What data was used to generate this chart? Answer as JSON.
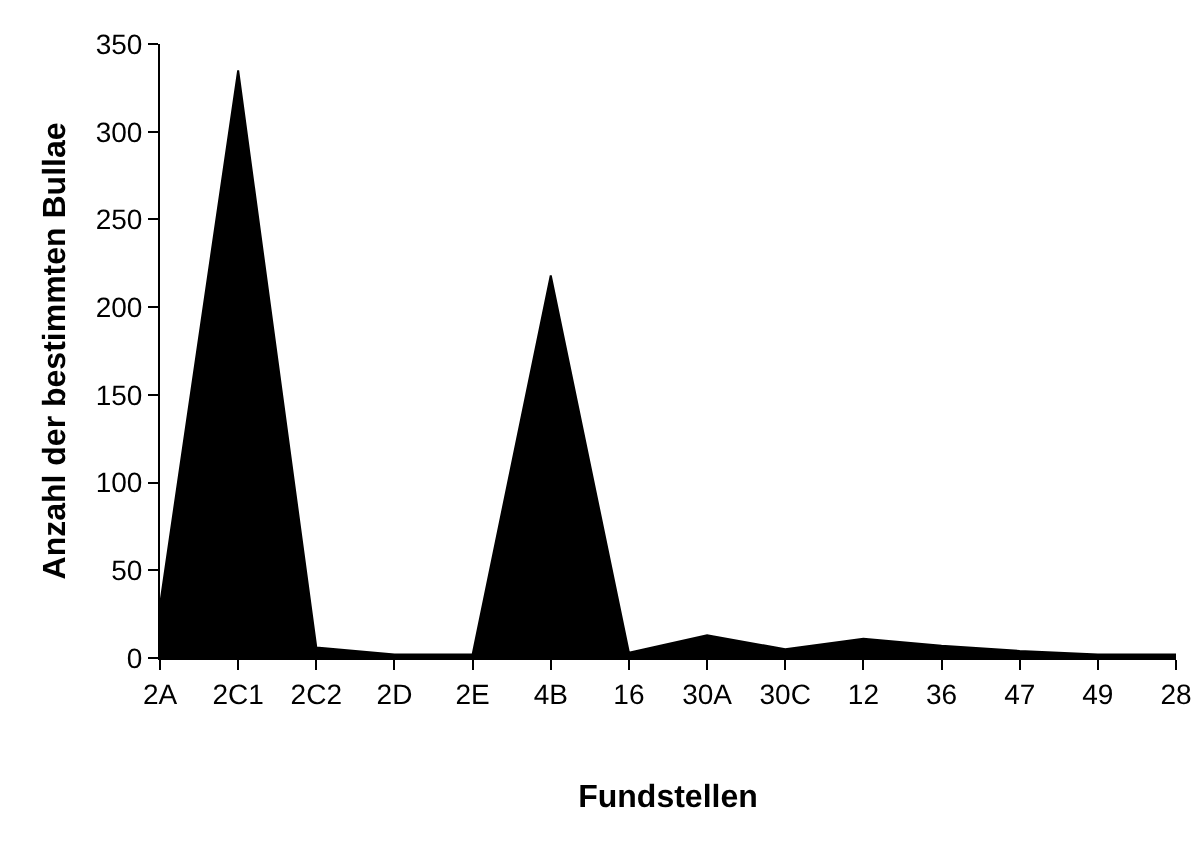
{
  "chart_data": {
    "type": "area",
    "xlabel": "Fundstellen",
    "ylabel": "Anzahl der bestimmten Bullae",
    "categories": [
      "2A",
      "2C1",
      "2C2",
      "2D",
      "2E",
      "4B",
      "16",
      "30A",
      "30C",
      "12",
      "36",
      "47",
      "49",
      "28"
    ],
    "values": [
      30,
      335,
      6,
      2,
      2,
      218,
      3,
      13,
      5,
      11,
      7,
      4,
      2,
      2
    ],
    "color": "#000000",
    "ylim": [
      0,
      350
    ],
    "yticks": [
      0,
      50,
      100,
      150,
      200,
      250,
      300,
      350
    ],
    "grid": false
  }
}
